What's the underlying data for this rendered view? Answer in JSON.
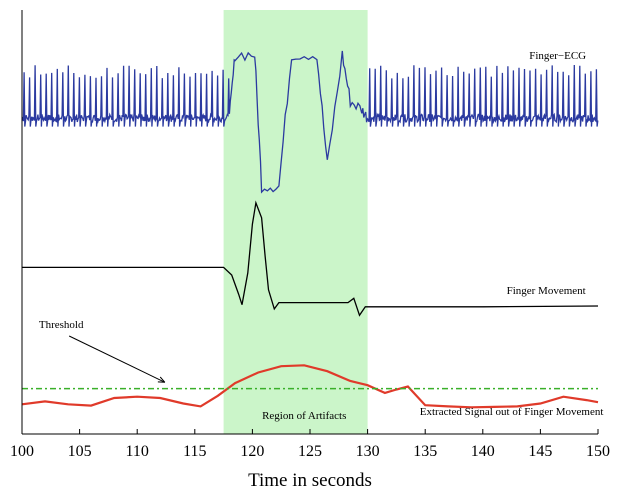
{
  "chart_data": {
    "type": "line",
    "xlabel": "Time in seconds",
    "xlim": [
      100,
      150
    ],
    "x_ticks": [
      "100",
      "105",
      "110",
      "115",
      "120",
      "125",
      "130",
      "135",
      "140",
      "145",
      "150"
    ],
    "x_tick_values": [
      100,
      105,
      110,
      115,
      120,
      125,
      130,
      135,
      140,
      145,
      150
    ],
    "y_axis": {
      "ticks_shown": false,
      "range": [
        0,
        1
      ]
    },
    "grid": false,
    "highlight_region": {
      "x": [
        117.5,
        130
      ],
      "label": "Region of Artifacts",
      "color": "#cbf5c9"
    },
    "series": [
      {
        "name": "Finger−ECG",
        "color": "#2b3aa0",
        "baseline": 0.745,
        "spike_interval_s": 0.48,
        "spike_height": 0.11,
        "spike_depth": 0.02,
        "artifact_segment": {
          "x": [
            118,
            118.5,
            120.2,
            120.8,
            122.3,
            123.4,
            125.6,
            126.5,
            127.8,
            128.5,
            129.5,
            130
          ],
          "y": [
            0.745,
            0.895,
            0.895,
            0.585,
            0.585,
            0.895,
            0.895,
            0.635,
            0.895,
            0.785,
            0.765,
            0.745
          ]
        }
      },
      {
        "name": "Finger Movement",
        "color": "#000000",
        "x": [
          100,
          117.5,
          118.2,
          118.8,
          119.1,
          119.6,
          120.0,
          120.3,
          120.8,
          121.1,
          121.4,
          121.9,
          122.3,
          123.5,
          125.0,
          127.0,
          128.3,
          128.8,
          129.3,
          129.8,
          131.0,
          140.0,
          150.0
        ],
        "y": [
          0.393,
          0.393,
          0.375,
          0.33,
          0.305,
          0.38,
          0.495,
          0.545,
          0.51,
          0.42,
          0.34,
          0.295,
          0.31,
          0.31,
          0.31,
          0.31,
          0.31,
          0.32,
          0.28,
          0.3,
          0.3,
          0.3,
          0.302
        ]
      },
      {
        "name": "Extracted Signal out of Finger Movement",
        "color": "#e03a2a",
        "x": [
          100,
          102,
          104,
          106,
          108,
          110,
          112,
          114,
          115.5,
          117,
          118.5,
          120.5,
          122.5,
          124.5,
          126.5,
          128.5,
          130,
          131.5,
          132.5,
          133.5,
          135,
          137,
          139,
          141,
          143,
          145,
          147,
          149,
          150
        ],
        "y": [
          0.07,
          0.077,
          0.07,
          0.067,
          0.085,
          0.088,
          0.085,
          0.072,
          0.065,
          0.09,
          0.12,
          0.145,
          0.16,
          0.162,
          0.148,
          0.125,
          0.115,
          0.097,
          0.105,
          0.112,
          0.068,
          0.065,
          0.063,
          0.064,
          0.065,
          0.072,
          0.088,
          0.08,
          0.075
        ]
      },
      {
        "name": "Threshold",
        "color": "#3ab02a",
        "style": "dash-dot",
        "x": [
          100,
          150
        ],
        "y": [
          0.107,
          0.107
        ]
      }
    ],
    "annotations": [
      {
        "text": "Finger−ECG",
        "x": 146.5,
        "y": 0.885
      },
      {
        "text": "Finger Movement",
        "x": 145.5,
        "y": 0.33
      },
      {
        "text": "Threshold",
        "x": 103.4,
        "y": 0.25,
        "arrow_to": [
          112.4,
          0.122
        ]
      },
      {
        "text": "Region of Artifacts",
        "x": 124.5,
        "y": 0.035
      },
      {
        "text": "Extracted Signal out of Finger Movement",
        "x": 142.5,
        "y": 0.045
      }
    ]
  }
}
